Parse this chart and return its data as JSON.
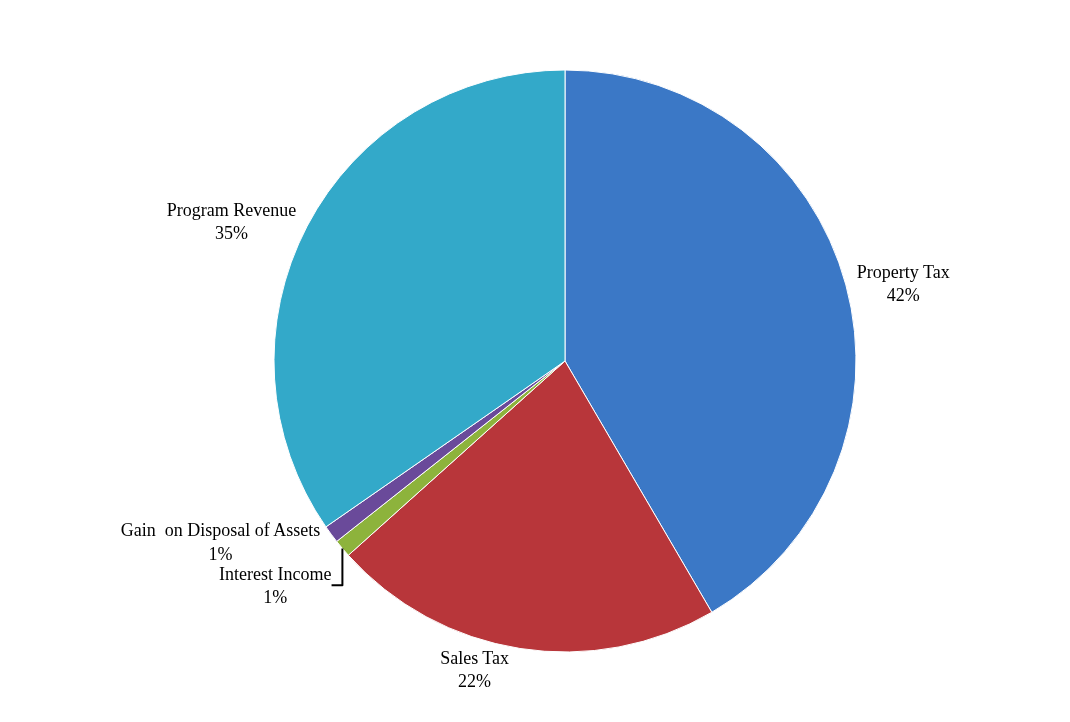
{
  "chart_data": {
    "type": "pie",
    "categories": [
      "Property Tax",
      "Sales Tax",
      "Interest Income",
      "Gain  on Disposal of Assets",
      "Program Revenue"
    ],
    "values": [
      42,
      22,
      1,
      1,
      35
    ],
    "value_labels": [
      "42%",
      "22%",
      "1%",
      "1%",
      "35%"
    ],
    "colors": [
      "#3b78c6",
      "#b8363a",
      "#8db33c",
      "#6a4a9a",
      "#33a9c9"
    ],
    "legend": false
  }
}
